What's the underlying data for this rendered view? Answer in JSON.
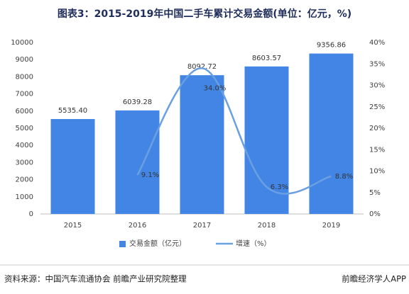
{
  "chart_data": {
    "type": "bar_line",
    "title": "图表3：2015-2019年中国二手车累计交易金额(单位：亿元，%)",
    "categories": [
      "2015",
      "2016",
      "2017",
      "2018",
      "2019"
    ],
    "series": [
      {
        "name": "交易金额（亿元）",
        "type": "bar",
        "color": "#4285e4",
        "values": [
          5535.4,
          6039.28,
          8092.72,
          8603.57,
          9356.86
        ],
        "value_labels": [
          "5535.40",
          "6039.28",
          "8092.72",
          "8603.57",
          "9356.86"
        ]
      },
      {
        "name": "增速（%）",
        "type": "line",
        "axis": "y2",
        "color": "#6a9fe2",
        "values": [
          null,
          9.1,
          34.0,
          6.3,
          8.8
        ],
        "value_labels": [
          null,
          "9.1%",
          "34.0%",
          "6.3%",
          "8.8%"
        ]
      }
    ],
    "ylim": [
      0,
      10000
    ],
    "yticks": [
      0,
      1000,
      2000,
      3000,
      4000,
      5000,
      6000,
      7000,
      8000,
      9000,
      10000
    ],
    "y2lim": [
      0,
      40
    ],
    "y2ticks": [
      {
        "value": 0,
        "label": "0%"
      },
      {
        "value": 5,
        "label": "5%"
      },
      {
        "value": 10,
        "label": "10%"
      },
      {
        "value": 15,
        "label": "15%"
      },
      {
        "value": 20,
        "label": "20%"
      },
      {
        "value": 25,
        "label": "25%"
      },
      {
        "value": 30,
        "label": "30%"
      },
      {
        "value": 35,
        "label": "35%"
      },
      {
        "value": 40,
        "label": "40%"
      }
    ],
    "legend": "bottom",
    "source": "资料来源：中国汽车流通协会 前瞻产业研究院整理",
    "watermark": "前瞻经济学人APP"
  }
}
